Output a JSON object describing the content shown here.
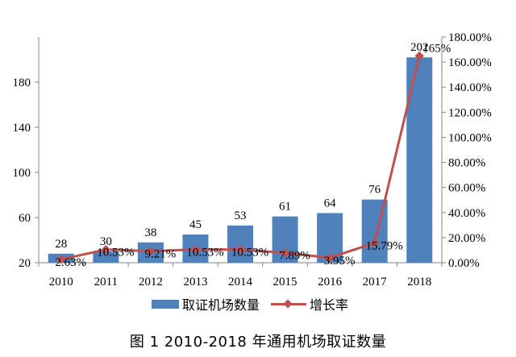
{
  "chart_data": {
    "type": "bar",
    "categories": [
      "2010",
      "2011",
      "2012",
      "2013",
      "2014",
      "2015",
      "2016",
      "2017",
      "2018"
    ],
    "series": [
      {
        "name": "取证机场数量",
        "type": "bar",
        "axis": "left",
        "values": [
          28,
          30,
          38,
          45,
          53,
          61,
          64,
          76,
          202
        ],
        "labels": [
          "28",
          "30",
          "38",
          "45",
          "53",
          "61",
          "64",
          "76",
          "202"
        ],
        "color": "#4f81bd"
      },
      {
        "name": "增长率",
        "type": "line",
        "axis": "right",
        "values": [
          2.63,
          10.53,
          9.21,
          10.53,
          10.53,
          7.89,
          3.95,
          15.79,
          165
        ],
        "labels": [
          "2.63%",
          "10.53%",
          "9.21%",
          "10.53%",
          "10.53%",
          "7.89%",
          "3.95%",
          "15.79%",
          "165%"
        ],
        "color": "#c0504d"
      }
    ],
    "y_left": {
      "min": 20,
      "max": 220,
      "ticks": [
        20,
        60,
        100,
        140,
        180
      ]
    },
    "y_right": {
      "min": 0,
      "max": 180,
      "ticks": [
        0,
        20,
        40,
        60,
        80,
        100,
        120,
        140,
        160,
        180
      ],
      "tick_labels": [
        "0.00%",
        "20.00%",
        "40.00%",
        "60.00%",
        "80.00%",
        "100.00%",
        "120.00%",
        "140.00%",
        "160.00%",
        "180.00%"
      ]
    },
    "legend_position": "bottom",
    "grid": false
  },
  "caption": "图 1  2010-2018 年通用机场取证数量"
}
